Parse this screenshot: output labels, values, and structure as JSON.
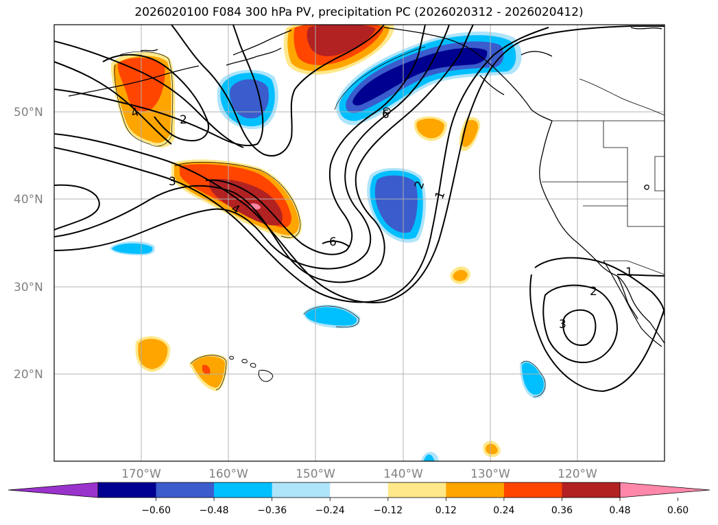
{
  "title": "2026020100 F084 300 hPa PV, precipitation PC (2026020312 - 2026020412)",
  "map": {
    "lon_range": [
      -180,
      -110
    ],
    "lat_range": [
      10,
      60
    ],
    "lat_ticks": [
      {
        "lat": 50,
        "label": "50°N"
      },
      {
        "lat": 40,
        "label": "40°N"
      },
      {
        "lat": 30,
        "label": "30°N"
      },
      {
        "lat": 20,
        "label": "20°N"
      }
    ],
    "lon_ticks": [
      {
        "lon": -170,
        "label": "170°W"
      },
      {
        "lon": -160,
        "label": "160°W"
      },
      {
        "lon": -150,
        "label": "150°W"
      },
      {
        "lon": -140,
        "label": "140°W"
      },
      {
        "lon": -130,
        "label": "130°W"
      },
      {
        "lon": -120,
        "label": "120°W"
      }
    ],
    "contour_labels": [
      "4",
      "2",
      "3",
      "4",
      "6",
      "6",
      "2",
      "1",
      "1",
      "2",
      "3"
    ]
  },
  "colorbar": {
    "colors": [
      "#9a33cc",
      "#000090",
      "#3a5ccc",
      "#00bfff",
      "#aee4fa",
      "#ffffff",
      "#ffe88a",
      "#ffa500",
      "#ff4500",
      "#b22222",
      "#ff88aa"
    ],
    "tick_labels": [
      "−0.60",
      "−0.48",
      "−0.36",
      "−0.24",
      "−0.12",
      "0.12",
      "0.24",
      "0.36",
      "0.48",
      "0.60"
    ]
  }
}
